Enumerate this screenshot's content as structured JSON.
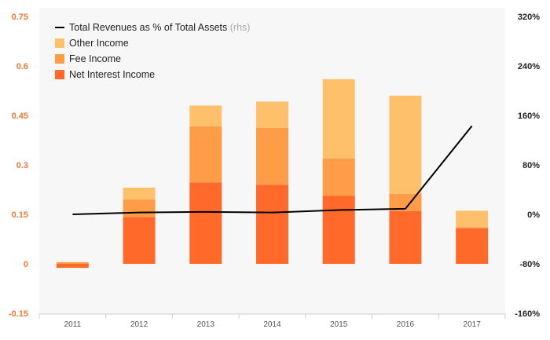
{
  "chart_data": {
    "type": "bar",
    "stacked": true,
    "categories": [
      "2011",
      "2012",
      "2013",
      "2014",
      "2015",
      "2016",
      "2017"
    ],
    "series": [
      {
        "name": "Net Interest Income",
        "color": "#ff6a2b",
        "values": [
          -0.012,
          0.142,
          0.247,
          0.24,
          0.206,
          0.16,
          0.108
        ]
      },
      {
        "name": "Fee Income",
        "color": "#ff9c47",
        "values": [
          0.005,
          0.053,
          0.17,
          0.172,
          0.113,
          0.052,
          0.003
        ]
      },
      {
        "name": "Other Income",
        "color": "#ffc06c",
        "values": [
          0.0,
          0.036,
          0.063,
          0.08,
          0.241,
          0.298,
          0.05
        ]
      }
    ],
    "line_series": {
      "name": "Total Revenues as % of Total Assets",
      "name_suffix": "(rhs)",
      "color": "#000000",
      "axis": "right",
      "values": [
        0,
        3,
        4,
        3,
        7,
        9,
        143
      ]
    },
    "left_axis": {
      "ylim": [
        -0.15,
        0.75
      ],
      "ticks": [
        -0.15,
        0,
        0.15,
        0.3,
        0.45,
        0.6,
        0.75
      ],
      "tick_labels": [
        "-0.15",
        "0",
        "0.15",
        "0.3",
        "0.45",
        "0.6",
        "0.75"
      ]
    },
    "right_axis": {
      "ylim": [
        -160,
        320
      ],
      "ticks": [
        -160,
        -80,
        0,
        80,
        160,
        240,
        320
      ],
      "tick_labels": [
        "-160%",
        "-80%",
        "0%",
        "80%",
        "160%",
        "240%",
        "320%"
      ]
    },
    "legend": {
      "placement": "top-left",
      "order": [
        "line",
        "Other Income",
        "Fee Income",
        "Net Interest Income"
      ]
    },
    "colors": {
      "plot_background": "#f7f7f7",
      "left_axis_text": "#f07a3a",
      "right_axis_text": "#222222"
    },
    "grid": false
  }
}
